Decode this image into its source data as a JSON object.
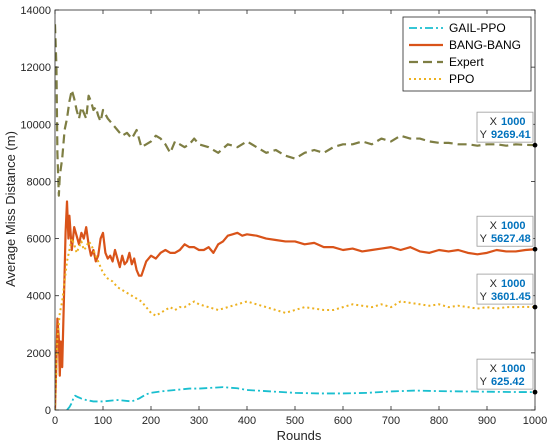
{
  "chart_data": {
    "type": "line",
    "xlabel": "Rounds",
    "ylabel": "Average Miss Distance (m)",
    "xlim": [
      0,
      1000
    ],
    "ylim": [
      0,
      14000
    ],
    "xticks": [
      0,
      100,
      200,
      300,
      400,
      500,
      600,
      700,
      800,
      900,
      1000
    ],
    "yticks": [
      0,
      2000,
      4000,
      6000,
      8000,
      10000,
      12000,
      14000
    ],
    "grid": false,
    "legend_position": "top-right",
    "series": [
      {
        "name": "GAIL-PPO",
        "color": "#1ABFCF",
        "dash": "dashdot",
        "x": [
          25,
          30,
          35,
          38,
          42,
          48,
          55,
          65,
          80,
          100,
          130,
          160,
          175,
          190,
          200,
          220,
          250,
          280,
          300,
          330,
          350,
          380,
          400,
          450,
          500,
          550,
          600,
          650,
          700,
          750,
          800,
          850,
          900,
          950,
          1000
        ],
        "y": [
          0,
          100,
          250,
          400,
          500,
          450,
          400,
          350,
          300,
          300,
          350,
          300,
          400,
          550,
          600,
          650,
          700,
          750,
          750,
          780,
          800,
          760,
          700,
          650,
          600,
          580,
          580,
          600,
          650,
          680,
          660,
          650,
          640,
          630,
          625.42
        ]
      },
      {
        "name": "BANG-BANG",
        "color": "#D95319",
        "dash": "solid",
        "x": [
          0,
          3,
          5,
          8,
          10,
          12,
          15,
          18,
          20,
          22,
          25,
          28,
          30,
          35,
          40,
          45,
          50,
          55,
          60,
          65,
          70,
          75,
          80,
          85,
          90,
          95,
          100,
          105,
          110,
          115,
          120,
          125,
          130,
          135,
          140,
          145,
          150,
          155,
          160,
          165,
          170,
          175,
          180,
          190,
          200,
          210,
          220,
          230,
          240,
          250,
          260,
          270,
          280,
          290,
          300,
          310,
          320,
          330,
          340,
          350,
          360,
          370,
          380,
          390,
          400,
          420,
          440,
          460,
          480,
          500,
          520,
          540,
          560,
          580,
          600,
          620,
          640,
          660,
          680,
          700,
          720,
          740,
          760,
          780,
          800,
          820,
          840,
          860,
          880,
          900,
          920,
          940,
          960,
          980,
          1000
        ],
        "y": [
          0,
          1800,
          3200,
          2500,
          1200,
          2400,
          1500,
          3500,
          4800,
          6200,
          7300,
          6000,
          6800,
          5600,
          6400,
          6100,
          5800,
          6200,
          6000,
          6400,
          5800,
          5400,
          5600,
          5200,
          5400,
          6000,
          6200,
          5500,
          5300,
          5400,
          5200,
          5600,
          5300,
          5000,
          5400,
          5100,
          5200,
          5500,
          5100,
          5300,
          4900,
          4700,
          4700,
          5200,
          5400,
          5300,
          5500,
          5600,
          5500,
          5500,
          5600,
          5800,
          5700,
          5700,
          5600,
          5600,
          5700,
          5500,
          5800,
          5900,
          6100,
          6150,
          6200,
          6100,
          6150,
          6100,
          6000,
          5950,
          5900,
          5900,
          5800,
          5850,
          5700,
          5700,
          5600,
          5650,
          5550,
          5600,
          5650,
          5700,
          5600,
          5700,
          5550,
          5500,
          5600,
          5550,
          5600,
          5500,
          5450,
          5500,
          5600,
          5550,
          5550,
          5600,
          5627.48
        ]
      },
      {
        "name": "Expert",
        "color": "#7E7E43",
        "dash": "dash",
        "x": [
          0,
          3,
          5,
          8,
          10,
          15,
          20,
          25,
          30,
          35,
          40,
          45,
          50,
          55,
          60,
          65,
          70,
          75,
          80,
          85,
          90,
          95,
          100,
          110,
          120,
          130,
          140,
          150,
          160,
          170,
          180,
          190,
          200,
          210,
          220,
          230,
          240,
          250,
          260,
          270,
          280,
          290,
          300,
          320,
          340,
          360,
          380,
          400,
          420,
          440,
          460,
          480,
          500,
          520,
          540,
          560,
          580,
          600,
          620,
          640,
          660,
          680,
          700,
          720,
          740,
          760,
          780,
          800,
          820,
          840,
          860,
          880,
          900,
          920,
          940,
          960,
          980,
          1000
        ],
        "y": [
          13500,
          12000,
          9000,
          7500,
          8200,
          8800,
          9800,
          10200,
          10800,
          11200,
          10900,
          10500,
          10200,
          10600,
          10400,
          10200,
          11000,
          10800,
          10500,
          10600,
          10300,
          10100,
          10500,
          10200,
          10000,
          9800,
          9600,
          9700,
          9500,
          9800,
          9200,
          9300,
          9400,
          9600,
          9500,
          9300,
          9000,
          9400,
          9300,
          9200,
          9300,
          9500,
          9300,
          9200,
          9000,
          9300,
          9200,
          9400,
          9200,
          9000,
          9100,
          8900,
          8800,
          9000,
          9100,
          9000,
          9200,
          9300,
          9300,
          9400,
          9300,
          9500,
          9400,
          9600,
          9500,
          9500,
          9400,
          9350,
          9350,
          9300,
          9300,
          9250,
          9300,
          9300,
          9250,
          9300,
          9280,
          9269.41
        ]
      },
      {
        "name": "PPO",
        "color": "#EDB120",
        "dash": "dot",
        "x": [
          0,
          3,
          5,
          8,
          10,
          15,
          20,
          25,
          30,
          35,
          40,
          45,
          50,
          55,
          60,
          65,
          70,
          75,
          80,
          90,
          100,
          110,
          120,
          130,
          140,
          150,
          160,
          170,
          180,
          190,
          200,
          210,
          220,
          230,
          240,
          250,
          260,
          270,
          280,
          290,
          300,
          320,
          340,
          360,
          380,
          400,
          420,
          440,
          460,
          480,
          500,
          520,
          540,
          560,
          580,
          600,
          620,
          640,
          660,
          680,
          700,
          720,
          740,
          760,
          780,
          800,
          820,
          840,
          860,
          880,
          900,
          920,
          940,
          960,
          980,
          1000
        ],
        "y": [
          0,
          1500,
          2500,
          3000,
          3400,
          3800,
          4500,
          5200,
          5600,
          6000,
          5800,
          5500,
          5700,
          5900,
          5600,
          5700,
          5900,
          5800,
          5600,
          5200,
          4800,
          4600,
          4500,
          4300,
          4200,
          4100,
          4000,
          3900,
          3800,
          3600,
          3400,
          3300,
          3400,
          3500,
          3600,
          3500,
          3600,
          3600,
          3700,
          3800,
          3700,
          3600,
          3500,
          3600,
          3700,
          3800,
          3700,
          3600,
          3500,
          3400,
          3500,
          3600,
          3550,
          3500,
          3500,
          3600,
          3700,
          3650,
          3600,
          3700,
          3600,
          3800,
          3750,
          3700,
          3650,
          3700,
          3600,
          3650,
          3600,
          3550,
          3600,
          3550,
          3600,
          3600,
          3610,
          3601.45
        ]
      }
    ],
    "annotations": [
      {
        "x_label": "X",
        "x_value": "1000",
        "y_label": "Y",
        "y_value": "9269.41",
        "at_x": 1000,
        "at_y": 9269.41
      },
      {
        "x_label": "X",
        "x_value": "1000",
        "y_label": "Y",
        "y_value": "5627.48",
        "at_x": 1000,
        "at_y": 5627.48
      },
      {
        "x_label": "X",
        "x_value": "1000",
        "y_label": "Y",
        "y_value": "3601.45",
        "at_x": 1000,
        "at_y": 3601.45
      },
      {
        "x_label": "X",
        "x_value": "1000",
        "y_label": "Y",
        "y_value": "625.42",
        "at_x": 1000,
        "at_y": 625.42
      }
    ]
  }
}
